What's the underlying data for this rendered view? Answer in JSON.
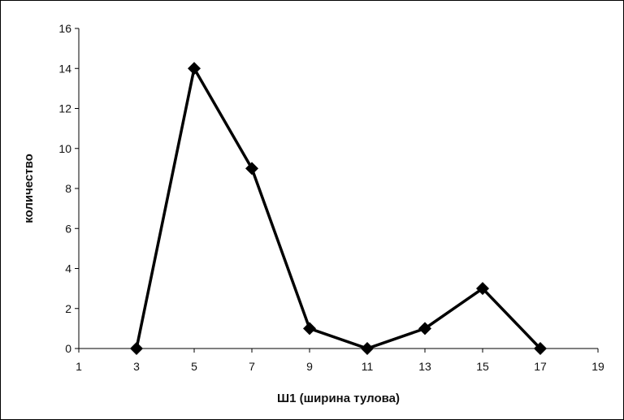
{
  "chart_data": {
    "type": "line",
    "title": "",
    "xlabel": "Ш1 (ширина тулова)",
    "ylabel": "количество",
    "x": [
      3,
      5,
      7,
      9,
      11,
      13,
      15,
      17
    ],
    "series": [
      {
        "values": [
          0,
          14,
          9,
          1,
          0,
          1,
          3,
          0
        ]
      }
    ],
    "xlim": [
      1,
      19
    ],
    "ylim": [
      0,
      16
    ],
    "x_ticks": [
      1,
      3,
      5,
      7,
      9,
      11,
      13,
      15,
      17,
      19
    ],
    "y_ticks": [
      0,
      2,
      4,
      6,
      8,
      10,
      12,
      14,
      16
    ],
    "grid": false,
    "legend": "none",
    "marker": "diamond",
    "line_color": "#000000",
    "marker_color": "#000000"
  }
}
